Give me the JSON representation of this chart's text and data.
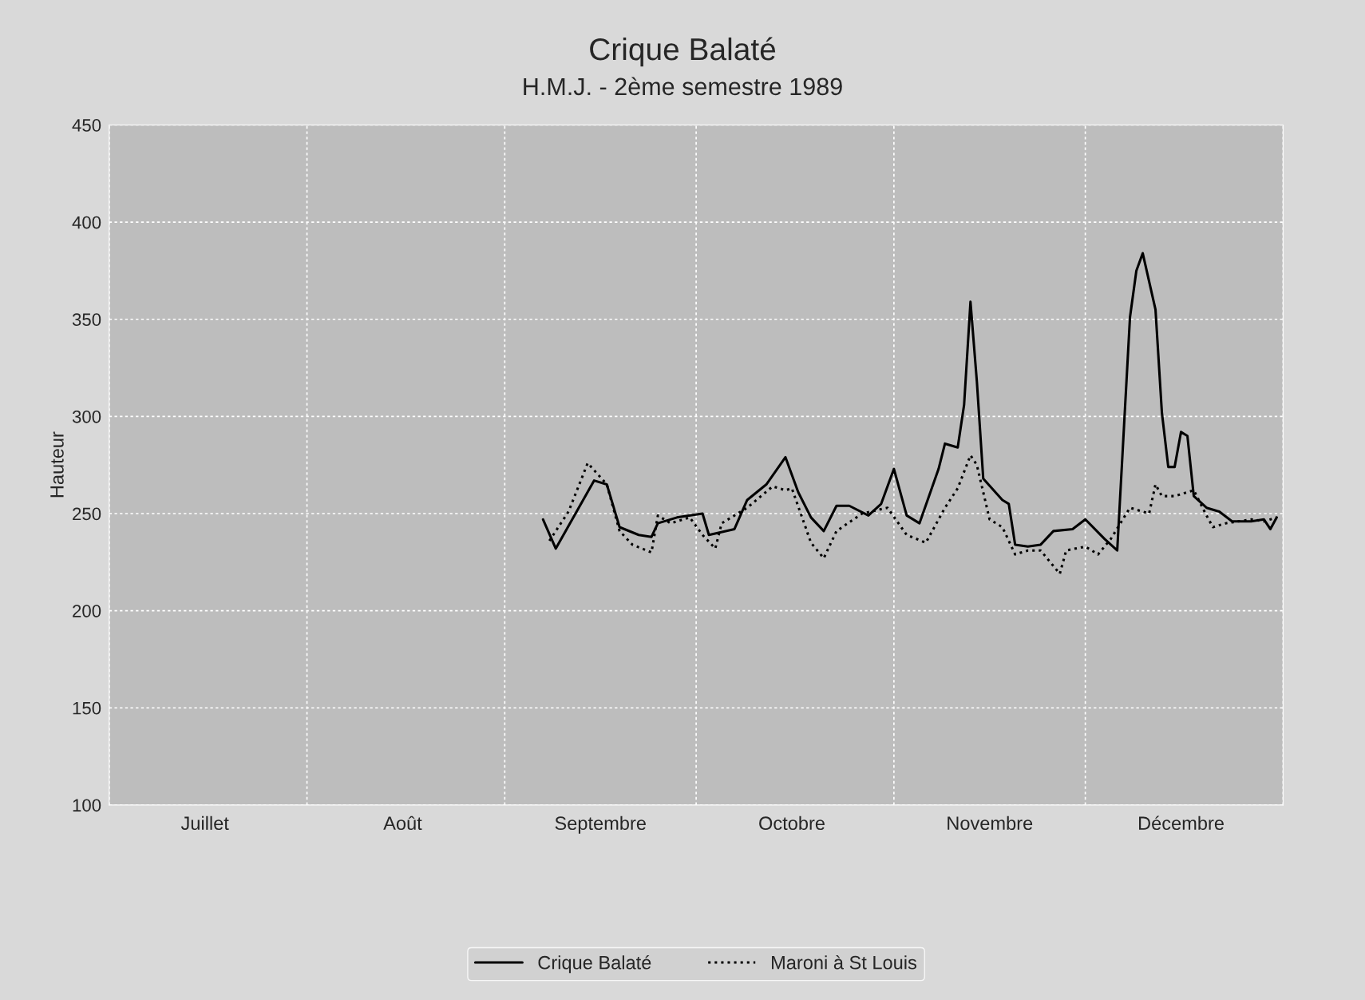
{
  "chart_data": {
    "type": "line",
    "title": "Crique Balaté",
    "subtitle": "H.M.J. - 2ème semestre 1989",
    "ylabel": "Hauteur",
    "xlim": [
      "1989-07-01",
      "1990-01-01"
    ],
    "ylim": [
      100,
      450
    ],
    "yticks": [
      100,
      150,
      200,
      250,
      300,
      350,
      400,
      450
    ],
    "xticks": [
      {
        "value": "1989-07-01",
        "label": null
      },
      {
        "value": "1989-07-16",
        "label": "Juillet"
      },
      {
        "value": "1989-08-01",
        "label": null
      },
      {
        "value": "1989-08-16",
        "label": "Août"
      },
      {
        "value": "1989-09-01",
        "label": null
      },
      {
        "value": "1989-09-16",
        "label": "Septembre"
      },
      {
        "value": "1989-10-01",
        "label": null
      },
      {
        "value": "1989-10-16",
        "label": "Octobre"
      },
      {
        "value": "1989-11-01",
        "label": null
      },
      {
        "value": "1989-11-16",
        "label": "Novembre"
      },
      {
        "value": "1989-12-01",
        "label": null
      },
      {
        "value": "1989-12-16",
        "label": "Décembre"
      },
      {
        "value": "1990-01-01",
        "label": null
      }
    ],
    "grid": true,
    "legend": "bottom",
    "marker": "none",
    "series": [
      {
        "name": "Crique Balaté",
        "color": "#000000",
        "line_style": "solid",
        "x": [
          "1989-09-07",
          "1989-09-09",
          "1989-09-15",
          "1989-09-17",
          "1989-09-19",
          "1989-09-22",
          "1989-09-24",
          "1989-09-25",
          "1989-09-28",
          "1989-10-02",
          "1989-10-03",
          "1989-10-07",
          "1989-10-09",
          "1989-10-12",
          "1989-10-15",
          "1989-10-17",
          "1989-10-19",
          "1989-10-21",
          "1989-10-23",
          "1989-10-25",
          "1989-10-28",
          "1989-10-30",
          "1989-11-01",
          "1989-11-03",
          "1989-11-05",
          "1989-11-08",
          "1989-11-09",
          "1989-11-11",
          "1989-11-12",
          "1989-11-13",
          "1989-11-14",
          "1989-11-15",
          "1989-11-18",
          "1989-11-19",
          "1989-11-20",
          "1989-11-22",
          "1989-11-24",
          "1989-11-26",
          "1989-11-29",
          "1989-12-01",
          "1989-12-04",
          "1989-12-06",
          "1989-12-08",
          "1989-12-09",
          "1989-12-10",
          "1989-12-12",
          "1989-12-13",
          "1989-12-14",
          "1989-12-15",
          "1989-12-16",
          "1989-12-17",
          "1989-12-18",
          "1989-12-20",
          "1989-12-22",
          "1989-12-24",
          "1989-12-27",
          "1989-12-29",
          "1989-12-30",
          "1989-12-31"
        ],
        "values": [
          247,
          232,
          267,
          265,
          243,
          239,
          238,
          245,
          248,
          250,
          239,
          242,
          257,
          265,
          279,
          261,
          248,
          241,
          254,
          254,
          249,
          255,
          273,
          249,
          245,
          273,
          286,
          284,
          306,
          359,
          318,
          268,
          257,
          255,
          234,
          233,
          234,
          241,
          242,
          247,
          237,
          231,
          351,
          375,
          384,
          355,
          302,
          274,
          274,
          292,
          290,
          259,
          253,
          251,
          246,
          246,
          247,
          242,
          248
        ]
      },
      {
        "name": "Maroni à St Louis",
        "color": "#000000",
        "line_style": "dotted",
        "x": [
          "1989-09-08",
          "1989-09-11",
          "1989-09-14",
          "1989-09-17",
          "1989-09-19",
          "1989-09-21",
          "1989-09-24",
          "1989-09-25",
          "1989-09-27",
          "1989-09-30",
          "1989-10-02",
          "1989-10-04",
          "1989-10-05",
          "1989-10-09",
          "1989-10-13",
          "1989-10-15",
          "1989-10-16",
          "1989-10-19",
          "1989-10-21",
          "1989-10-23",
          "1989-10-27",
          "1989-10-31",
          "1989-11-03",
          "1989-11-06",
          "1989-11-09",
          "1989-11-11",
          "1989-11-13",
          "1989-11-14",
          "1989-11-16",
          "1989-11-18",
          "1989-11-20",
          "1989-11-22",
          "1989-11-24",
          "1989-11-27",
          "1989-11-28",
          "1989-12-01",
          "1989-12-03",
          "1989-12-05",
          "1989-12-08",
          "1989-12-11",
          "1989-12-12",
          "1989-12-13",
          "1989-12-15",
          "1989-12-18",
          "1989-12-20",
          "1989-12-21",
          "1989-12-23",
          "1989-12-27",
          "1989-12-29",
          "1989-12-31"
        ],
        "values": [
          236,
          251,
          276,
          265,
          241,
          234,
          230,
          249,
          245,
          248,
          239,
          232,
          245,
          253,
          264,
          262,
          263,
          235,
          227,
          241,
          250,
          253,
          239,
          235,
          253,
          263,
          280,
          275,
          247,
          243,
          229,
          231,
          231,
          219,
          231,
          233,
          229,
          237,
          253,
          250,
          265,
          259,
          259,
          262,
          249,
          243,
          245,
          247,
          246,
          248
        ]
      }
    ]
  }
}
